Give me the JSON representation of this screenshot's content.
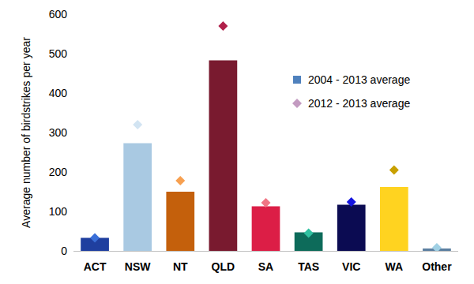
{
  "chart_data": {
    "type": "bar",
    "y_label": "Average number of birdstrikes per year",
    "categories": [
      "ACT",
      "NSW",
      "NT",
      "QLD",
      "SA",
      "TAS",
      "VIC",
      "WA",
      "Other"
    ],
    "series": [
      {
        "name": "2004 - 2013 average",
        "type": "bar",
        "color": "#4f81bd",
        "colors": [
          "#1f3f9f",
          "#a9c9e2",
          "#c4600c",
          "#791a2f",
          "#dc1e46",
          "#0d6b5a",
          "#0b0b52",
          "#ffd320",
          "#5b7fa0"
        ],
        "values": [
          33,
          273,
          150,
          483,
          113,
          47,
          117,
          162,
          6
        ]
      },
      {
        "name": "2012 - 2013 average",
        "type": "scatter",
        "marker": "diamond",
        "color": "#c39bc1",
        "colors": [
          "#3a6fd8",
          "#d2e4f2",
          "#f7a050",
          "#b0204a",
          "#f07585",
          "#30c0a0",
          "#1414e0",
          "#c8a000",
          "#a0d0e4"
        ],
        "values": [
          33,
          320,
          178,
          570,
          122,
          45,
          124,
          205,
          8
        ]
      }
    ],
    "ylim": [
      0,
      600
    ],
    "yticks": [
      0,
      100,
      200,
      300,
      400,
      500,
      600
    ],
    "grid": false,
    "legend": "top-right"
  }
}
